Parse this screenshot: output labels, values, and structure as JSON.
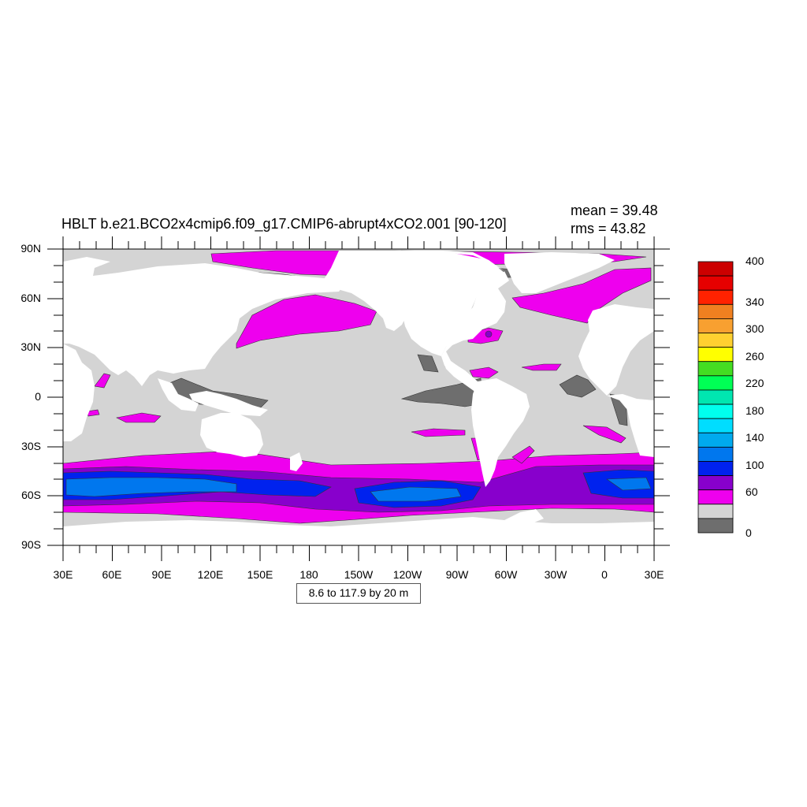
{
  "title": "HBLT b.e21.BCO2x4cmip6.f09_g17.CMIP6-abrupt4xCO2.001 [90-120]",
  "stats": {
    "mean": "mean = 39.48",
    "rms": "rms = 43.82"
  },
  "contour_info": "8.6 to 117.9 by 20 m",
  "y_labels": [
    "90N",
    "60N",
    "30N",
    "0",
    "30S",
    "60S",
    "90S"
  ],
  "x_labels": [
    "30E",
    "60E",
    "90E",
    "120E",
    "150E",
    "180",
    "150W",
    "120W",
    "90W",
    "60W",
    "30W",
    "0",
    "30E"
  ],
  "colorbar": {
    "labels": [
      "400",
      "340",
      "300",
      "260",
      "220",
      "180",
      "140",
      "100",
      "60",
      "0"
    ],
    "colors": [
      "#cc0000",
      "#e60000",
      "#ff2200",
      "#f08020",
      "#f8a030",
      "#ffd030",
      "#ffff00",
      "#44dd22",
      "#00ff55",
      "#00e6b0",
      "#00ffee",
      "#00ddff",
      "#00aaee",
      "#0077ee",
      "#0022ee",
      "#8800cc",
      "#ee00ee",
      "#d4d4d4",
      "#6e6e6e"
    ]
  },
  "colors": {
    "ocean_fill": "#d4d4d4",
    "land": "#ffffff",
    "level_below_20": "#6e6e6e",
    "level_40_60": "#ee00ee",
    "level_60_80": "#8800cc",
    "level_80_100": "#0022ee",
    "level_100_120": "#0077ee"
  }
}
